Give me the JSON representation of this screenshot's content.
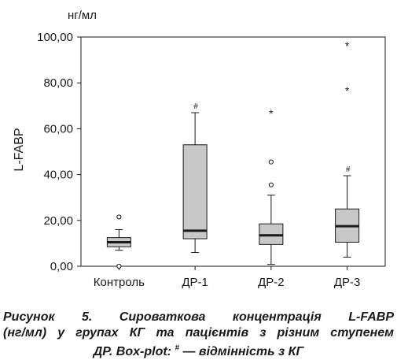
{
  "chart_data": {
    "type": "box",
    "unit_label": "нг/мл",
    "ylabel": "L-FABP",
    "xlabel": "",
    "ylim": [
      0,
      100
    ],
    "y_ticks": [
      "0,00",
      "20,00",
      "40,00",
      "60,00",
      "80,00",
      "100,00"
    ],
    "y_tick_values": [
      0,
      20,
      40,
      60,
      80,
      100
    ],
    "grid": false,
    "categories": [
      "Контроль",
      "ДР-1",
      "ДР-2",
      "ДР-3"
    ],
    "boxes": [
      {
        "category": "Контроль",
        "whisker_low": 7,
        "q1": 8.5,
        "median": 10.5,
        "q3": 12.5,
        "whisker_high": 16,
        "outliers": [
          21.5
        ],
        "extremes": [],
        "significance_mark": ""
      },
      {
        "category": "ДР-1",
        "whisker_low": 6,
        "q1": 12,
        "median": 15.5,
        "q3": 53,
        "whisker_high": 67,
        "outliers": [],
        "extremes": [],
        "significance_mark": "#"
      },
      {
        "category": "ДР-2",
        "whisker_low": 0.8,
        "q1": 9.5,
        "median": 13.5,
        "q3": 18.5,
        "whisker_high": 31,
        "outliers": [
          45.5,
          35.5
        ],
        "extremes": [
          67
        ],
        "significance_mark": ""
      },
      {
        "category": "ДР-3",
        "whisker_low": 4,
        "q1": 10.5,
        "median": 17.5,
        "q3": 25,
        "whisker_high": 39.5,
        "outliers": [],
        "extremes": [
          96.5,
          77
        ],
        "significance_mark": "#"
      }
    ],
    "lower_outlier_control": 0,
    "colors": {
      "box_fill": "#c8c8c8",
      "stroke": "#1a1a1a"
    }
  },
  "caption": {
    "line1": "Рисунок 5. Сироваткова концентрація L-FABP",
    "line2": "(нг/мл) у групах КГ та пацієнтів з різним ступенем",
    "line3": "ДР. Box-plot: # — відмінність з КГ"
  }
}
